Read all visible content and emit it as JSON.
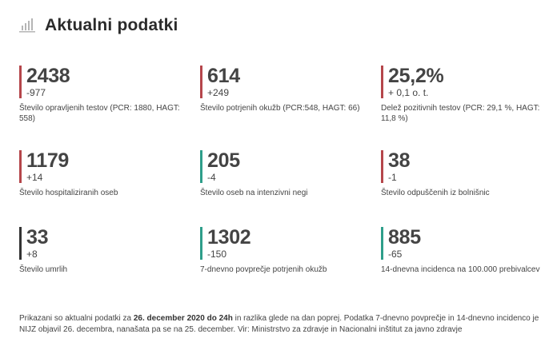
{
  "header": {
    "title": "Aktualni podatki",
    "icon": "bar-chart-icon"
  },
  "colors": {
    "red": "#b5464b",
    "teal": "#2e9e8a",
    "dark": "#333333"
  },
  "stats": [
    {
      "value": "2438",
      "delta": "-977",
      "label": "Število opravljenih testov (PCR: 1880, HAGT: 558)",
      "color": "red"
    },
    {
      "value": "614",
      "delta": "+249",
      "label": "Število potrjenih okužb (PCR:548, HAGT: 66)",
      "color": "red"
    },
    {
      "value": "25,2%",
      "delta": "+ 0,1 o. t.",
      "label": "Delež pozitivnih testov (PCR: 29,1 %, HAGT: 11,8 %)",
      "color": "red"
    },
    {
      "value": "1179",
      "delta": "+14",
      "label": "Število hospitaliziranih oseb",
      "color": "red"
    },
    {
      "value": "205",
      "delta": "-4",
      "label": "Število oseb na intenzivni negi",
      "color": "teal"
    },
    {
      "value": "38",
      "delta": "-1",
      "label": "Število odpuščenih iz bolnišnic",
      "color": "red"
    },
    {
      "value": "33",
      "delta": "+8",
      "label": "Število umrlih",
      "color": "dark"
    },
    {
      "value": "1302",
      "delta": "-150",
      "label": "7-dnevno povprečje potrjenih okužb",
      "color": "teal"
    },
    {
      "value": "885",
      "delta": "-65",
      "label": "14-dnevna incidenca na 100.000 prebivalcev",
      "color": "teal"
    }
  ],
  "footer": {
    "prefix": "Prikazani so aktualni podatki za ",
    "date": "26. december 2020 do 24h",
    "suffix": " in razlika glede na dan poprej. Podatka 7-dnevno povprečje in 14-dnevno incidenco je NIJZ objavil 26. decembra, nanašata pa se na 25. december. Vir: Ministrstvo za zdravje in Nacionalni inštitut za javno zdravje"
  }
}
